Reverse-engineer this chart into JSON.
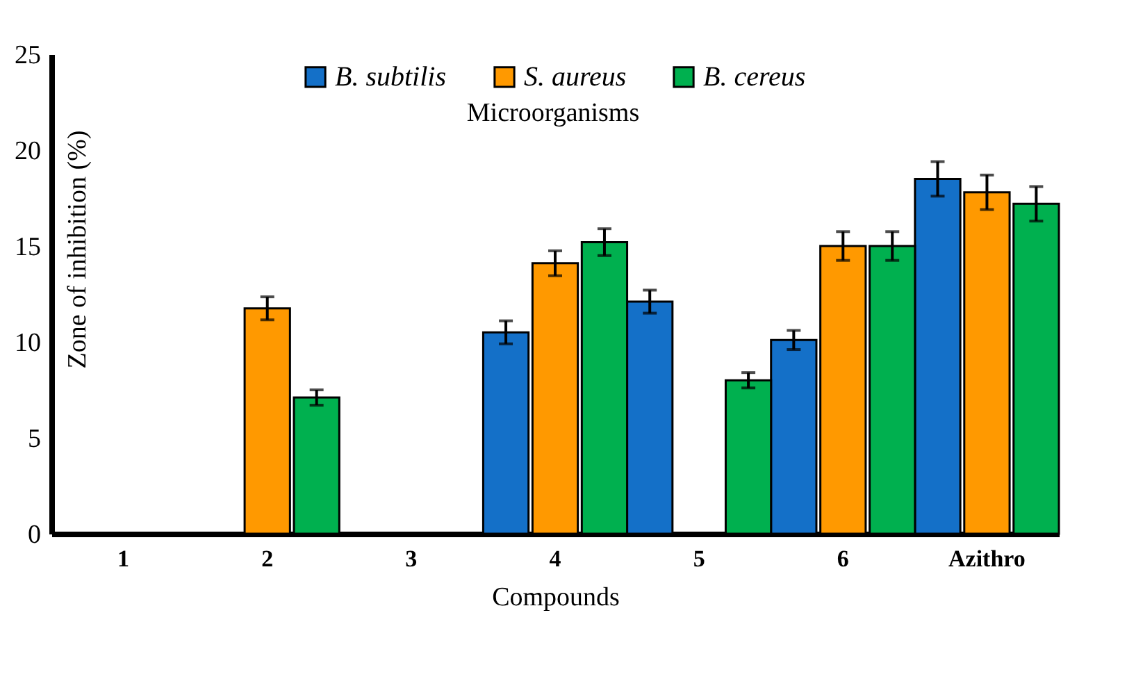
{
  "chart_data": {
    "type": "bar",
    "xlabel": "Compounds",
    "ylabel": "Zone of inhibition (%)",
    "legend_title": "Microorganisms",
    "legend": "top",
    "categories": [
      "1",
      "2",
      "3",
      "4",
      "5",
      "6",
      "Azithro"
    ],
    "ylim": [
      0,
      25
    ],
    "yticks": [
      0,
      5,
      10,
      15,
      20,
      25
    ],
    "series": [
      {
        "name": "B. subtilis",
        "color": "#1470c8",
        "values": [
          null,
          null,
          null,
          10.5,
          12.1,
          10.1,
          18.5
        ],
        "errors": [
          null,
          null,
          null,
          0.6,
          0.6,
          0.5,
          0.9
        ]
      },
      {
        "name": "S. aureus",
        "color": "#ff9900",
        "values": [
          null,
          11.75,
          null,
          14.1,
          null,
          15.0,
          17.8
        ],
        "errors": [
          null,
          0.6,
          null,
          0.65,
          null,
          0.75,
          0.9
        ]
      },
      {
        "name": "B. cereus",
        "color": "#00b04f",
        "values": [
          null,
          7.1,
          null,
          15.2,
          8.0,
          15.0,
          17.2
        ],
        "errors": [
          null,
          0.4,
          null,
          0.7,
          0.4,
          0.75,
          0.9
        ]
      }
    ]
  }
}
